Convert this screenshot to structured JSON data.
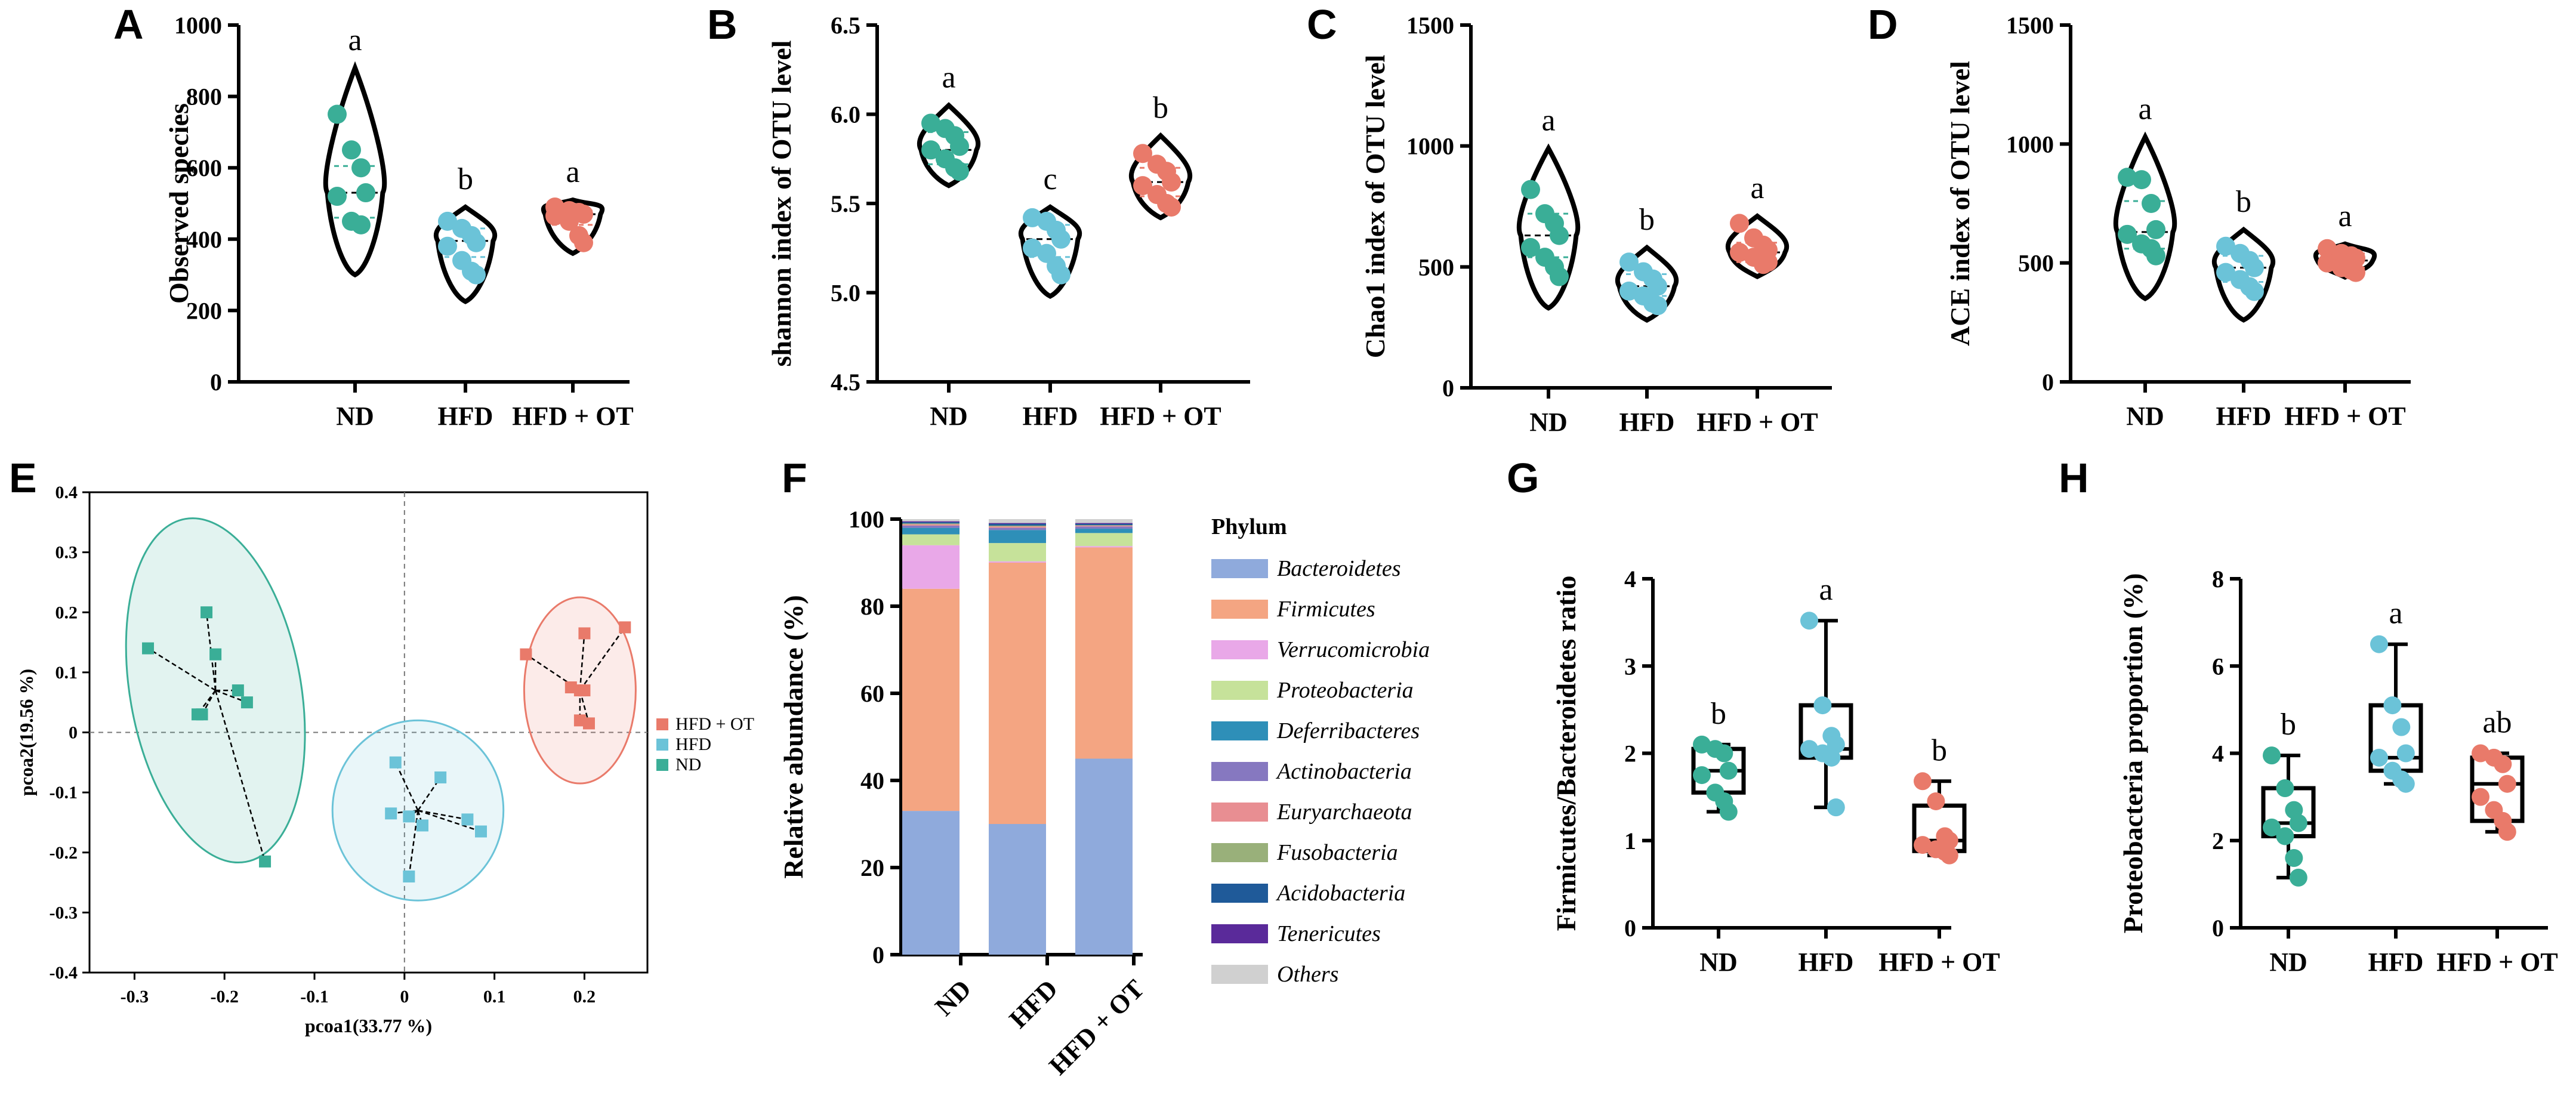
{
  "colors": {
    "nd": "#3AAE97",
    "hfd": "#6BC3D8",
    "ot": "#E97A6A",
    "axis": "#000000"
  },
  "chart_data": [
    {
      "id": "A",
      "type": "violin",
      "panel_label": "A",
      "title": "",
      "xlabel": "",
      "ylabel": "Observed species",
      "ylim": [
        0,
        1000
      ],
      "yticks": [
        0,
        200,
        400,
        600,
        800,
        1000
      ],
      "ytick_labels": [
        "0",
        "200",
        "400",
        "600",
        "800",
        "1000"
      ],
      "categories": [
        "ND",
        "HFD",
        "HFD + OT"
      ],
      "letters": [
        "a",
        "b",
        "a"
      ],
      "series": [
        {
          "name": "ND",
          "points": [
            750,
            650,
            600,
            530,
            520,
            450,
            440
          ],
          "median": 530,
          "q1": 460,
          "q3": 605,
          "range": [
            300,
            880
          ]
        },
        {
          "name": "HFD",
          "points": [
            450,
            430,
            410,
            390,
            380,
            340,
            310,
            300
          ],
          "median": 395,
          "q1": 350,
          "q3": 430,
          "range": [
            225,
            490
          ]
        },
        {
          "name": "HFD + OT",
          "points": [
            490,
            480,
            475,
            470,
            465,
            450,
            410,
            390
          ],
          "median": 470,
          "q1": 440,
          "q3": 480,
          "range": [
            360,
            510
          ]
        }
      ]
    },
    {
      "id": "B",
      "type": "violin",
      "panel_label": "B",
      "title": "",
      "xlabel": "",
      "ylabel": "shannon index of OTU level",
      "ylim": [
        4.5,
        6.5
      ],
      "yticks": [
        4.5,
        5.0,
        5.5,
        6.0,
        6.5
      ],
      "ytick_labels": [
        "4.5",
        "5.0",
        "5.5",
        "6.0",
        "6.5"
      ],
      "categories": [
        "ND",
        "HFD",
        "HFD + OT"
      ],
      "letters": [
        "a",
        "c",
        "b"
      ],
      "series": [
        {
          "name": "ND",
          "points": [
            5.95,
            5.92,
            5.88,
            5.82,
            5.8,
            5.75,
            5.7,
            5.68
          ],
          "median": 5.8,
          "q1": 5.72,
          "q3": 5.9,
          "range": [
            5.6,
            6.05
          ]
        },
        {
          "name": "HFD",
          "points": [
            5.42,
            5.4,
            5.35,
            5.3,
            5.25,
            5.22,
            5.15,
            5.1
          ],
          "median": 5.3,
          "q1": 5.2,
          "q3": 5.38,
          "range": [
            4.98,
            5.48
          ]
        },
        {
          "name": "HFD + OT",
          "points": [
            5.78,
            5.72,
            5.68,
            5.62,
            5.6,
            5.55,
            5.5,
            5.48
          ],
          "median": 5.62,
          "q1": 5.54,
          "q3": 5.7,
          "range": [
            5.42,
            5.88
          ]
        }
      ]
    },
    {
      "id": "C",
      "type": "violin",
      "panel_label": "C",
      "title": "",
      "xlabel": "",
      "ylabel": "Chao1 index of OTU level",
      "ylim": [
        0,
        1500
      ],
      "yticks": [
        0,
        500,
        1000,
        1500
      ],
      "ytick_labels": [
        "0",
        "500",
        "1000",
        "1500"
      ],
      "categories": [
        "ND",
        "HFD",
        "HFD + OT"
      ],
      "letters": [
        "a",
        "b",
        "a"
      ],
      "series": [
        {
          "name": "ND",
          "points": [
            820,
            720,
            680,
            630,
            580,
            540,
            500,
            460
          ],
          "median": 630,
          "q1": 540,
          "q3": 720,
          "range": [
            330,
            990
          ]
        },
        {
          "name": "HFD",
          "points": [
            520,
            480,
            450,
            420,
            400,
            380,
            350,
            340
          ],
          "median": 420,
          "q1": 380,
          "q3": 470,
          "range": [
            280,
            580
          ]
        },
        {
          "name": "HFD + OT",
          "points": [
            680,
            620,
            590,
            570,
            560,
            540,
            510,
            520
          ],
          "median": 560,
          "q1": 520,
          "q3": 600,
          "range": [
            460,
            710
          ]
        }
      ]
    },
    {
      "id": "D",
      "type": "violin",
      "panel_label": "D",
      "title": "",
      "xlabel": "",
      "ylabel": "ACE index of OTU level",
      "ylim": [
        0,
        1500
      ],
      "yticks": [
        0,
        500,
        1000,
        1500
      ],
      "ytick_labels": [
        "0",
        "500",
        "1000",
        "1500"
      ],
      "categories": [
        "ND",
        "HFD",
        "HFD + OT"
      ],
      "letters": [
        "a",
        "b",
        "a"
      ],
      "series": [
        {
          "name": "ND",
          "points": [
            860,
            850,
            750,
            640,
            620,
            580,
            560,
            530
          ],
          "median": 630,
          "q1": 560,
          "q3": 760,
          "range": [
            350,
            1030
          ]
        },
        {
          "name": "HFD",
          "points": [
            570,
            540,
            510,
            480,
            460,
            430,
            400,
            380
          ],
          "median": 480,
          "q1": 420,
          "q3": 530,
          "range": [
            260,
            640
          ]
        },
        {
          "name": "HFD + OT",
          "points": [
            560,
            540,
            530,
            520,
            500,
            480,
            470,
            460
          ],
          "median": 510,
          "q1": 480,
          "q3": 540,
          "range": [
            440,
            580
          ]
        }
      ]
    },
    {
      "id": "E",
      "type": "scatter",
      "panel_label": "E",
      "title": "",
      "xlabel": "pcoa1(33.77 %)",
      "ylabel": "pcoa2(19.56 %)",
      "xlim": [
        -0.35,
        0.27
      ],
      "ylim": [
        -0.4,
        0.4
      ],
      "xticks": [
        -0.3,
        -0.2,
        -0.1,
        0,
        0.1,
        0.2
      ],
      "xtick_labels": [
        "-0.3",
        "-0.2",
        "-0.1",
        "0",
        "0.1",
        "0.2"
      ],
      "yticks": [
        -0.4,
        -0.3,
        -0.2,
        -0.1,
        0,
        0.1,
        0.2,
        0.3,
        0.4
      ],
      "ytick_labels": [
        "-0.4",
        "-0.3",
        "-0.2",
        "-0.1",
        "0",
        "0.1",
        "0.2",
        "0.3",
        "0.4"
      ],
      "legend": [
        "HFD + OT",
        "HFD",
        "ND"
      ],
      "legend_placement": "right",
      "series": [
        {
          "name": "ND",
          "centroid": [
            -0.21,
            0.07
          ],
          "ellipse": {
            "rx": 0.095,
            "ry": 0.29,
            "angle_deg": 10
          },
          "x": [
            -0.285,
            -0.22,
            -0.21,
            -0.185,
            -0.175,
            -0.23,
            -0.225,
            -0.155
          ],
          "y": [
            0.14,
            0.2,
            0.13,
            0.07,
            0.05,
            0.03,
            0.03,
            -0.215
          ]
        },
        {
          "name": "HFD",
          "centroid": [
            0.015,
            -0.13
          ],
          "ellipse": {
            "rx": 0.095,
            "ry": 0.15,
            "angle_deg": 0
          },
          "x": [
            -0.01,
            0.04,
            -0.015,
            0.005,
            0.02,
            0.07,
            0.085,
            0.005
          ],
          "y": [
            -0.05,
            -0.075,
            -0.135,
            -0.14,
            -0.155,
            -0.145,
            -0.165,
            -0.24
          ]
        },
        {
          "name": "HFD + OT",
          "centroid": [
            0.195,
            0.07
          ],
          "ellipse": {
            "rx": 0.062,
            "ry": 0.155,
            "angle_deg": 0
          },
          "x": [
            0.135,
            0.2,
            0.245,
            0.185,
            0.195,
            0.2,
            0.205,
            0.195
          ],
          "y": [
            0.13,
            0.165,
            0.175,
            0.075,
            0.07,
            0.07,
            0.015,
            0.02
          ]
        }
      ]
    },
    {
      "id": "F",
      "type": "bar",
      "stacked": true,
      "panel_label": "F",
      "title": "",
      "xlabel": "",
      "ylabel": "Relative abundance (%)",
      "ylim": [
        0,
        100
      ],
      "yticks": [
        0,
        20,
        40,
        60,
        80,
        100
      ],
      "ytick_labels": [
        "0",
        "20",
        "40",
        "60",
        "80",
        "100"
      ],
      "categories": [
        "ND",
        "HFD",
        "HFD + OT"
      ],
      "legend_title": "Phylum",
      "series": [
        {
          "name": "Bacteroidetes",
          "color": "#8FAADC",
          "values": [
            33,
            30,
            45
          ]
        },
        {
          "name": "Firmicutes",
          "color": "#F4A582",
          "values": [
            51,
            60,
            48.5
          ]
        },
        {
          "name": "Verrucomicrobia",
          "color": "#E9A8E8",
          "values": [
            10,
            0.3,
            0.3
          ]
        },
        {
          "name": "Proteobacteria",
          "color": "#C6E29A",
          "values": [
            2.5,
            4.2,
            3.0
          ]
        },
        {
          "name": "Deferribacteres",
          "color": "#2E8FB8",
          "values": [
            1.5,
            3.0,
            1.0
          ]
        },
        {
          "name": "Actinobacteria",
          "color": "#8678C0",
          "values": [
            0.5,
            0.5,
            0.5
          ]
        },
        {
          "name": "Euryarchaeota",
          "color": "#E88E92",
          "values": [
            0.3,
            0.3,
            0.2
          ]
        },
        {
          "name": "Fusobacteria",
          "color": "#99B07A",
          "values": [
            0.2,
            0.2,
            0.1
          ]
        },
        {
          "name": "Acidobacteria",
          "color": "#1F5A99",
          "values": [
            0.3,
            0.4,
            0.3
          ]
        },
        {
          "name": "Tenericutes",
          "color": "#5A2A9A",
          "values": [
            0.2,
            0.2,
            0.2
          ]
        },
        {
          "name": "Others",
          "color": "#D0D0D0",
          "values": [
            0.5,
            0.9,
            0.9
          ]
        }
      ]
    },
    {
      "id": "G",
      "type": "box",
      "panel_label": "G",
      "title": "",
      "xlabel": "",
      "ylabel": "Firmicutes/Bacteroidetes ratio",
      "ylim": [
        0,
        4
      ],
      "yticks": [
        0,
        1,
        2,
        3,
        4
      ],
      "ytick_labels": [
        "0",
        "1",
        "2",
        "3",
        "4"
      ],
      "categories": [
        "ND",
        "HFD",
        "HFD + OT"
      ],
      "letters": [
        "b",
        "a",
        "b"
      ],
      "series": [
        {
          "name": "ND",
          "min": 1.33,
          "q1": 1.55,
          "median": 1.8,
          "q3": 2.05,
          "max": 2.1,
          "points": [
            2.1,
            2.05,
            2.0,
            1.8,
            1.75,
            1.55,
            1.45,
            1.33
          ]
        },
        {
          "name": "HFD",
          "min": 1.38,
          "q1": 1.95,
          "median": 2.05,
          "q3": 2.55,
          "max": 3.52,
          "points": [
            3.52,
            2.55,
            2.2,
            2.1,
            2.05,
            2.0,
            1.95,
            1.38
          ]
        },
        {
          "name": "HFD + OT",
          "min": 0.83,
          "q1": 0.88,
          "median": 1.0,
          "q3": 1.4,
          "max": 1.68,
          "points": [
            1.68,
            1.45,
            1.05,
            1.0,
            0.95,
            0.9,
            0.87,
            0.83
          ]
        }
      ]
    },
    {
      "id": "H",
      "type": "box",
      "panel_label": "H",
      "title": "",
      "xlabel": "",
      "ylabel": "Proteobacteria proportion (%)",
      "ylim": [
        0,
        8
      ],
      "yticks": [
        0,
        2,
        4,
        6,
        8
      ],
      "ytick_labels": [
        "0",
        "2",
        "4",
        "6",
        "8"
      ],
      "categories": [
        "ND",
        "HFD",
        "HFD + OT"
      ],
      "letters": [
        "b",
        "a",
        "ab"
      ],
      "series": [
        {
          "name": "ND",
          "min": 1.15,
          "q1": 2.1,
          "median": 2.4,
          "q3": 3.2,
          "max": 3.95,
          "points": [
            3.95,
            3.2,
            2.7,
            2.4,
            2.3,
            2.1,
            1.6,
            1.15
          ]
        },
        {
          "name": "HFD",
          "min": 3.3,
          "q1": 3.6,
          "median": 3.9,
          "q3": 5.1,
          "max": 6.5,
          "points": [
            6.5,
            5.1,
            4.6,
            4.0,
            3.9,
            3.6,
            3.4,
            3.3
          ]
        },
        {
          "name": "HFD + OT",
          "min": 2.2,
          "q1": 2.45,
          "median": 3.3,
          "q3": 3.9,
          "max": 4.0,
          "points": [
            4.0,
            3.9,
            3.75,
            3.3,
            3.0,
            2.7,
            2.45,
            2.2
          ]
        }
      ]
    }
  ]
}
